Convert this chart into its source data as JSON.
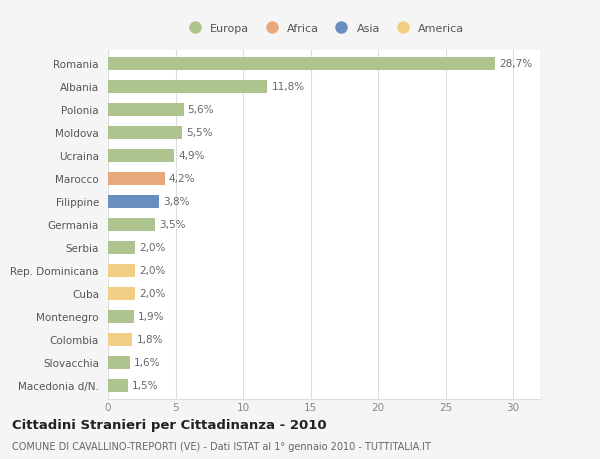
{
  "countries": [
    "Romania",
    "Albania",
    "Polonia",
    "Moldova",
    "Ucraina",
    "Marocco",
    "Filippine",
    "Germania",
    "Serbia",
    "Rep. Dominicana",
    "Cuba",
    "Montenegro",
    "Colombia",
    "Slovacchia",
    "Macedonia d/N."
  ],
  "values": [
    28.7,
    11.8,
    5.6,
    5.5,
    4.9,
    4.2,
    3.8,
    3.5,
    2.0,
    2.0,
    2.0,
    1.9,
    1.8,
    1.6,
    1.5
  ],
  "labels": [
    "28,7%",
    "11,8%",
    "5,6%",
    "5,5%",
    "4,9%",
    "4,2%",
    "3,8%",
    "3,5%",
    "2,0%",
    "2,0%",
    "2,0%",
    "1,9%",
    "1,8%",
    "1,6%",
    "1,5%"
  ],
  "continents": [
    "Europa",
    "Europa",
    "Europa",
    "Europa",
    "Europa",
    "Africa",
    "Asia",
    "Europa",
    "Europa",
    "America",
    "America",
    "Europa",
    "America",
    "Europa",
    "Europa"
  ],
  "continent_colors": {
    "Europa": "#aec48f",
    "Africa": "#e8a87c",
    "Asia": "#6a8fbf",
    "America": "#f0cf85"
  },
  "legend_order": [
    "Europa",
    "Africa",
    "Asia",
    "America"
  ],
  "bg_color": "#f5f5f5",
  "plot_bg_color": "#ffffff",
  "grid_color": "#dddddd",
  "title": "Cittadini Stranieri per Cittadinanza - 2010",
  "subtitle": "COMUNE DI CAVALLINO-TREPORTI (VE) - Dati ISTAT al 1° gennaio 2010 - TUTTITALIA.IT",
  "xlim": [
    0,
    32
  ],
  "xticks": [
    0,
    5,
    10,
    15,
    20,
    25,
    30
  ],
  "bar_height": 0.55,
  "label_fontsize": 7.5,
  "tick_fontsize": 7.5,
  "title_fontsize": 9.5,
  "subtitle_fontsize": 7.0
}
